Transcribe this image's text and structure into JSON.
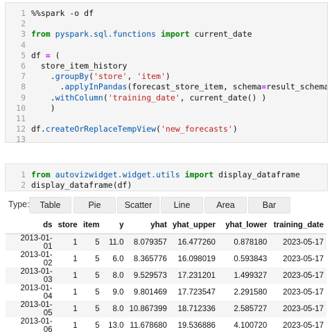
{
  "cells": [
    {
      "id": "cell1",
      "lines": [
        {
          "num": "1",
          "tokens": [
            {
              "t": "%%spark -o df",
              "c": "magic"
            }
          ]
        },
        {
          "num": "2",
          "tokens": []
        },
        {
          "num": "3",
          "tokens": [
            {
              "t": "from",
              "c": "kw"
            },
            {
              "t": " "
            },
            {
              "t": "pyspark.sql.functions",
              "c": "mod"
            },
            {
              "t": " "
            },
            {
              "t": "import",
              "c": "kw"
            },
            {
              "t": " current_date"
            }
          ]
        },
        {
          "num": "4",
          "tokens": []
        },
        {
          "num": "5",
          "tokens": [
            {
              "t": "df "
            },
            {
              "t": "=",
              "c": "op"
            },
            {
              "t": " ("
            }
          ]
        },
        {
          "num": "6",
          "tokens": [
            {
              "t": "  store_item_history"
            }
          ]
        },
        {
          "num": "7",
          "tokens": [
            {
              "t": "    ."
            },
            {
              "t": "groupBy",
              "c": "fn"
            },
            {
              "t": "("
            },
            {
              "t": "'store'",
              "c": "str"
            },
            {
              "t": ", "
            },
            {
              "t": "'item'",
              "c": "str"
            },
            {
              "t": ")"
            }
          ]
        },
        {
          "num": "8",
          "tokens": [
            {
              "t": "      ."
            },
            {
              "t": "applyInPandas",
              "c": "fn"
            },
            {
              "t": "(forecast_store_item, schema"
            },
            {
              "t": "=",
              "c": "op"
            },
            {
              "t": "result_schema)"
            }
          ]
        },
        {
          "num": "9",
          "tokens": [
            {
              "t": "    ."
            },
            {
              "t": "withColumn",
              "c": "fn"
            },
            {
              "t": "("
            },
            {
              "t": "'training_date'",
              "c": "str"
            },
            {
              "t": ", current_date() )"
            }
          ]
        },
        {
          "num": "10",
          "tokens": [
            {
              "t": "    )"
            }
          ]
        },
        {
          "num": "11",
          "tokens": []
        },
        {
          "num": "12",
          "tokens": [
            {
              "t": "df."
            },
            {
              "t": "createOrReplaceTempView",
              "c": "fn"
            },
            {
              "t": "("
            },
            {
              "t": "'new_forecasts'",
              "c": "str"
            },
            {
              "t": ")"
            }
          ]
        },
        {
          "num": "13",
          "tokens": []
        }
      ]
    },
    {
      "id": "cell2",
      "lines": [
        {
          "num": "1",
          "tokens": [
            {
              "t": "from",
              "c": "kw"
            },
            {
              "t": " "
            },
            {
              "t": "autovizwidget.widget.utils",
              "c": "mod"
            },
            {
              "t": " "
            },
            {
              "t": "import",
              "c": "kw"
            },
            {
              "t": " display_dataframe"
            }
          ]
        },
        {
          "num": "2",
          "tokens": [
            {
              "t": "display_dataframe(df)"
            }
          ]
        }
      ]
    }
  ],
  "type_label": "Type:",
  "type_buttons": [
    "Table",
    "Pie",
    "Scatter",
    "Line",
    "Area",
    "Bar"
  ],
  "table": {
    "columns": [
      "",
      "ds",
      "store",
      "item",
      "y",
      "yhat",
      "yhat_upper",
      "yhat_lower",
      "training_date"
    ],
    "rows": [
      [
        "",
        "2013-01-01",
        "1",
        "5",
        "11.0",
        "8.079357",
        "16.477260",
        "0.878180",
        "2023-05-17"
      ],
      [
        "",
        "2013-01-02",
        "1",
        "5",
        "6.0",
        "8.365776",
        "16.098019",
        "0.593843",
        "2023-05-17"
      ],
      [
        "",
        "2013-01-03",
        "1",
        "5",
        "8.0",
        "9.529573",
        "17.231201",
        "1.499327",
        "2023-05-17"
      ],
      [
        "",
        "2013-01-04",
        "1",
        "5",
        "9.0",
        "9.801469",
        "17.723547",
        "2.291580",
        "2023-05-17"
      ],
      [
        "",
        "2013-01-05",
        "1",
        "5",
        "8.0",
        "10.867399",
        "18.712336",
        "2.585727",
        "2023-05-17"
      ],
      [
        "",
        "2013-01-06",
        "1",
        "5",
        "13.0",
        "11.678680",
        "19.536886",
        "4.100720",
        "2023-05-17"
      ]
    ]
  }
}
